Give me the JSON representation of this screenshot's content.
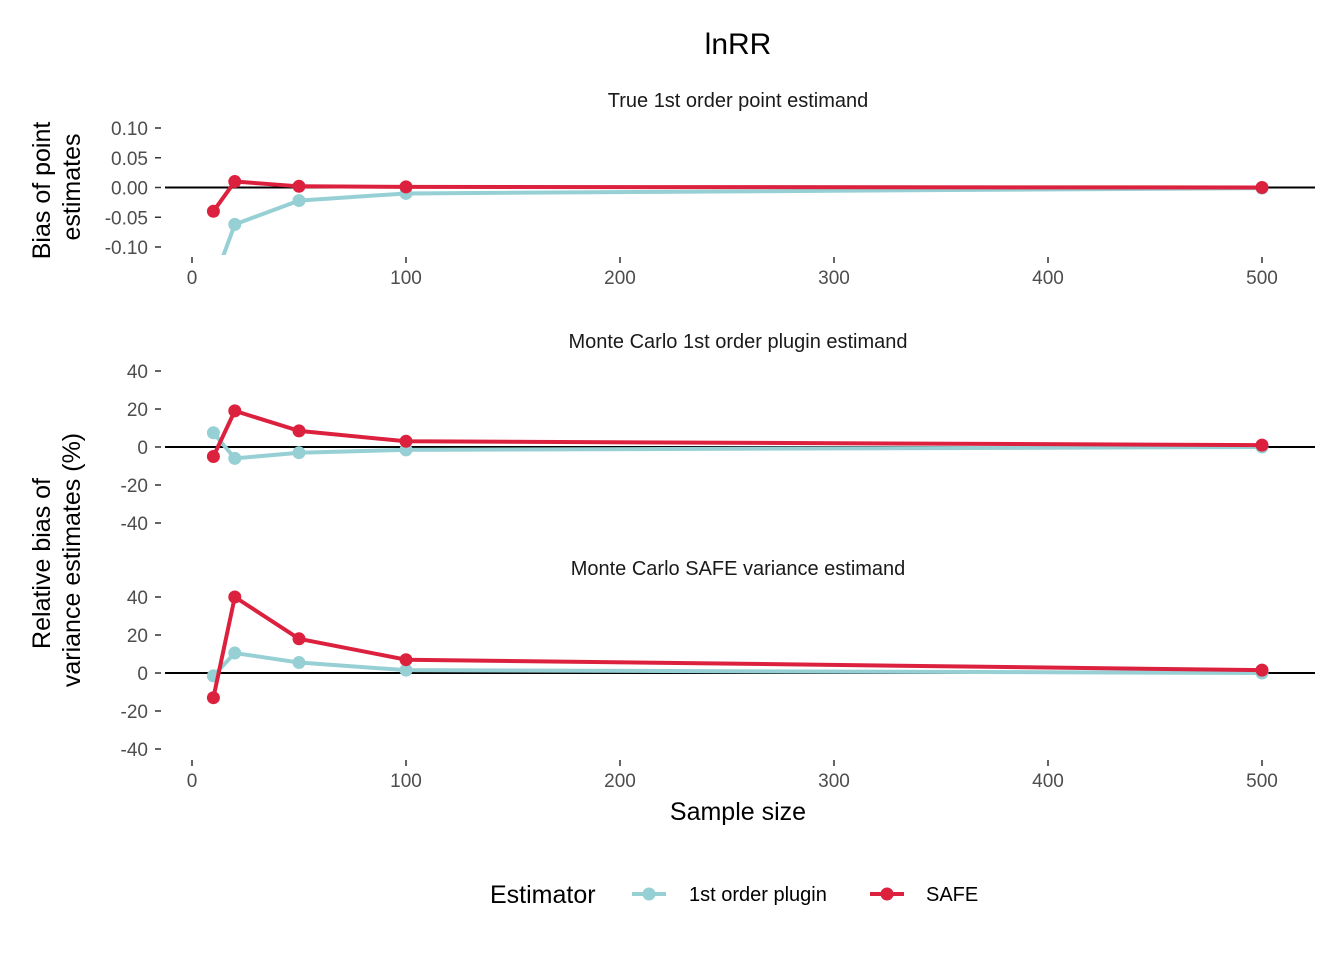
{
  "chart_data": {
    "type": "line",
    "title": "lnRR",
    "xlabel": "Sample size",
    "x": [
      10,
      20,
      50,
      100,
      500
    ],
    "xlim": [
      0,
      500
    ],
    "x_ticks": [
      "0",
      "100",
      "200",
      "300",
      "400",
      "500"
    ],
    "legend": {
      "title": "Estimator",
      "placement": "bottom",
      "entries": [
        "1st order plugin",
        "SAFE"
      ]
    },
    "colors": {
      "plugin": "#96d0d4",
      "safe": "#dc213f",
      "reference_line": "#000000"
    },
    "y_axis_titles": {
      "top": [
        "Bias of point",
        "estimates"
      ],
      "bottom": [
        "Relative bias of",
        "variance estimates (%)"
      ]
    },
    "panels": [
      {
        "title": "True 1st order point estimand",
        "ylim": [
          -0.11,
          0.12
        ],
        "y_ticks": [
          "0.10",
          "0.05",
          "0.00",
          "-0.05",
          "-0.10"
        ],
        "reference_line": 0,
        "series": [
          {
            "name": "1st order plugin",
            "values": [
              -0.16,
              -0.062,
              -0.022,
              -0.01,
              -0.001
            ]
          },
          {
            "name": "SAFE",
            "values": [
              -0.04,
              0.01,
              0.002,
              0.001,
              0.0
            ]
          }
        ]
      },
      {
        "title": "Monte Carlo 1st order plugin estimand",
        "ylim": [
          -40,
          40
        ],
        "y_ticks": [
          "40",
          "20",
          "0",
          "-20",
          "-40"
        ],
        "reference_line": 0,
        "series": [
          {
            "name": "1st order plugin",
            "values": [
              7.5,
              -6,
              -3,
              -1.5,
              0
            ]
          },
          {
            "name": "SAFE",
            "values": [
              -5,
              19,
              8.5,
              3,
              1
            ]
          }
        ]
      },
      {
        "title": "Monte Carlo SAFE variance estimand",
        "ylim": [
          -40,
          40
        ],
        "y_ticks": [
          "40",
          "20",
          "0",
          "-20",
          "-40"
        ],
        "reference_line": 0,
        "series": [
          {
            "name": "1st order plugin",
            "values": [
              -1.5,
              10.5,
              5.5,
              1.5,
              0
            ]
          },
          {
            "name": "SAFE",
            "values": [
              -13,
              40,
              18,
              7,
              1.5
            ]
          }
        ]
      }
    ]
  }
}
